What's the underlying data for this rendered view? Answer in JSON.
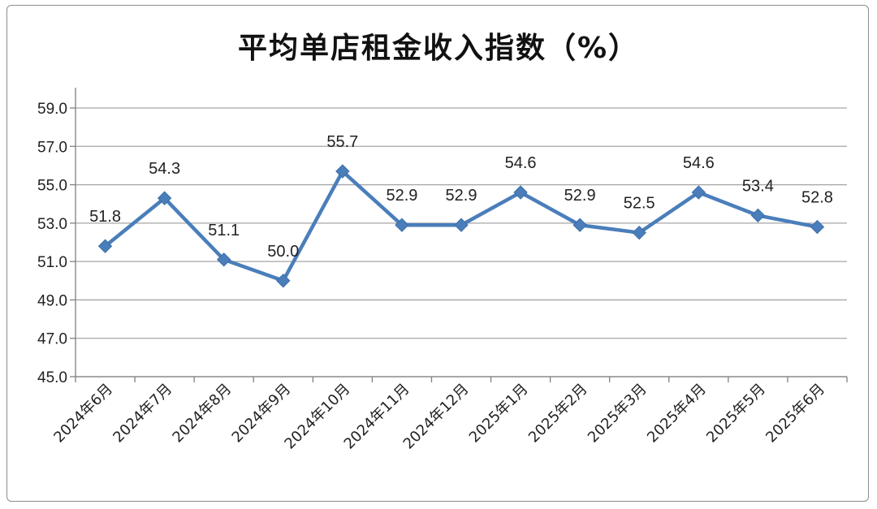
{
  "chart_data": {
    "type": "line",
    "title": "平均单店租金收入指数（%）",
    "xlabel": "",
    "ylabel": "",
    "categories": [
      "2024年6月",
      "2024年7月",
      "2024年8月",
      "2024年9月",
      "2024年10月",
      "2024年11月",
      "2024年12月",
      "2025年1月",
      "2025年2月",
      "2025年3月",
      "2025年4月",
      "2025年5月",
      "2025年6月"
    ],
    "series": [
      {
        "values": [
          51.8,
          54.3,
          51.1,
          50.0,
          55.7,
          52.9,
          52.9,
          54.6,
          52.9,
          52.5,
          54.6,
          53.4,
          52.8
        ]
      }
    ],
    "data_labels": [
      "51.8",
      "54.3",
      "51.1",
      "50.0",
      "55.7",
      "52.9",
      "52.9",
      "54.6",
      "52.9",
      "52.5",
      "54.6",
      "53.4",
      "52.8"
    ],
    "ylim": [
      45.0,
      59.0
    ],
    "yticks": [
      "45.0",
      "47.0",
      "49.0",
      "51.0",
      "53.0",
      "55.0",
      "57.0",
      "59.0"
    ],
    "grid": true,
    "legend": "none",
    "colors": {
      "line": "#4a7ebb",
      "grid": "#a6a6a6",
      "axis": "#808080"
    }
  }
}
